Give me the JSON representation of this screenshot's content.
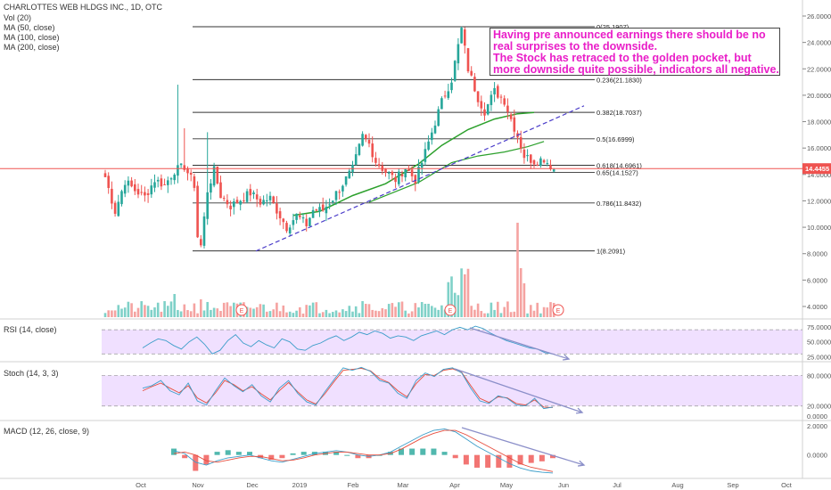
{
  "header": {
    "title": "CHARLOTTES WEB HLDGS INC., 1D, OTC",
    "legend": [
      "Vol (20)",
      "MA (50, close)",
      "MA (100, close)",
      "MA (200, close)"
    ]
  },
  "annotation": {
    "lines": [
      "Having pre announced earnings there should be no",
      "real surprises to the downside.",
      "The Stock has retraced to the golden pocket, but",
      "more downside quite possible, indicators all negative."
    ]
  },
  "price_badge": "14.4455",
  "earnings_marker": "E",
  "panes": {
    "rsi": "RSI (14, close)",
    "stoch": "Stoch (14, 3, 3)",
    "macd": "MACD (12, 26, close, 9)"
  },
  "colors": {
    "up": "#26a69a",
    "down": "#ef5350",
    "ma": "#2ca02c",
    "rsi_line": "#3b9dc9",
    "stoch_k": "#3b9dc9",
    "stoch_d": "#e74c3c",
    "band": "#e6ccff",
    "trend": "#4a3cc9",
    "arrow": "#8b8fc9",
    "annotation_text": "#e91ec8",
    "price_line": "#ef5350"
  },
  "chart_data": [
    {
      "type": "candlestick",
      "title": "CHARLOTTES WEB HLDGS INC., 1D, OTC",
      "x_ticks": [
        "Oct",
        "Nov",
        "Dec",
        "2019",
        "Feb",
        "Mar",
        "Apr",
        "May",
        "Jun",
        "Jul",
        "Aug",
        "Sep",
        "Oct"
      ],
      "y_ticks": [
        "26.0000",
        "24.0000",
        "22.0000",
        "20.0000",
        "18.0000",
        "16.0000",
        "14.0000",
        "12.0000",
        "10.0000",
        "8.0000",
        "6.0000",
        "4.0000"
      ],
      "ylim": [
        3.5,
        26.2
      ],
      "close_path": [
        [
          0,
          13.8
        ],
        [
          3,
          11.2
        ],
        [
          6,
          13.5
        ],
        [
          9,
          12.8
        ],
        [
          12,
          12.3
        ],
        [
          15,
          13.6
        ],
        [
          18,
          13.2
        ],
        [
          21,
          14.3
        ],
        [
          24,
          14.6
        ],
        [
          27,
          13.2
        ],
        [
          28,
          9.3
        ],
        [
          29,
          8.6
        ],
        [
          31,
          12.8
        ],
        [
          33,
          14.3
        ],
        [
          35,
          12.4
        ],
        [
          38,
          11.6
        ],
        [
          41,
          12.1
        ],
        [
          44,
          12.6
        ],
        [
          47,
          11.9
        ],
        [
          50,
          12.2
        ],
        [
          52,
          11.3
        ],
        [
          55,
          10.0
        ],
        [
          58,
          10.9
        ],
        [
          61,
          10.2
        ],
        [
          63,
          11.3
        ],
        [
          66,
          11.3
        ],
        [
          69,
          12.2
        ],
        [
          72,
          13.3
        ],
        [
          75,
          14.4
        ],
        [
          78,
          16.9
        ],
        [
          80,
          16.3
        ],
        [
          82,
          15.0
        ],
        [
          85,
          14.2
        ],
        [
          88,
          13.6
        ],
        [
          91,
          14.5
        ],
        [
          94,
          13.6
        ],
        [
          96,
          14.9
        ],
        [
          99,
          17.2
        ],
        [
          102,
          19.5
        ],
        [
          105,
          21.2
        ],
        [
          108,
          25.0
        ],
        [
          110,
          22.0
        ],
        [
          113,
          19.8
        ],
        [
          115,
          18.8
        ],
        [
          118,
          20.3
        ],
        [
          121,
          19.6
        ],
        [
          123,
          18.2
        ],
        [
          125,
          16.9
        ],
        [
          127,
          15.4
        ],
        [
          130,
          15.0
        ],
        [
          133,
          15.2
        ],
        [
          136,
          14.4
        ]
      ],
      "ma_fast": [
        [
          57,
          10.9
        ],
        [
          65,
          11.2
        ],
        [
          75,
          12.4
        ],
        [
          85,
          13.3
        ],
        [
          95,
          14.8
        ],
        [
          102,
          16.2
        ],
        [
          110,
          17.4
        ],
        [
          118,
          18.2
        ],
        [
          125,
          18.6
        ],
        [
          130,
          18.7
        ]
      ],
      "ma_slow": [
        [
          80,
          11.9
        ],
        [
          95,
          13.4
        ],
        [
          105,
          14.9
        ],
        [
          113,
          15.4
        ],
        [
          121,
          15.7
        ],
        [
          128,
          16.1
        ],
        [
          133,
          16.5
        ]
      ],
      "fib_levels": [
        {
          "label": "0(25.1907)",
          "value": 25.1907
        },
        {
          "label": "0.236(21.1830)",
          "value": 21.183
        },
        {
          "label": "0.382(18.7037)",
          "value": 18.7037
        },
        {
          "label": "0.5(16.6999)",
          "value": 16.6999
        },
        {
          "label": "0.618(14.6961)",
          "value": 14.6961
        },
        {
          "label": "0.65(14.1527)",
          "value": 14.1527
        },
        {
          "label": "0.786(11.8432)",
          "value": 11.8432
        },
        {
          "label": "1(8.2091)",
          "value": 8.2091
        }
      ],
      "last_price": 14.4455
    },
    {
      "type": "line",
      "title": "RSI (14, close)",
      "y_ticks": [
        "75.0000",
        "50.0000",
        "25.0000"
      ],
      "ylim": [
        20,
        85
      ],
      "band": [
        30,
        70
      ],
      "values": [
        40,
        48,
        55,
        52,
        44,
        38,
        50,
        58,
        46,
        30,
        36,
        52,
        62,
        48,
        42,
        52,
        45,
        40,
        55,
        50,
        38,
        36,
        44,
        48,
        55,
        60,
        52,
        58,
        66,
        62,
        68,
        64,
        56,
        60,
        58,
        52,
        60,
        64,
        68,
        62,
        70,
        74,
        70,
        76,
        72,
        64,
        58,
        52,
        48,
        44,
        40,
        38,
        32,
        30
      ]
    },
    {
      "type": "line",
      "title": "Stoch (14, 3, 3)",
      "y_ticks": [
        "80.0000",
        "20.0000",
        "0.0000"
      ],
      "ylim": [
        -5,
        100
      ],
      "band": [
        20,
        80
      ],
      "series": [
        {
          "values": [
            55,
            60,
            70,
            50,
            42,
            65,
            30,
            22,
            50,
            75,
            60,
            48,
            62,
            40,
            28,
            55,
            70,
            45,
            28,
            22,
            48,
            72,
            95,
            90,
            96,
            88,
            70,
            65,
            45,
            35,
            70,
            85,
            78,
            92,
            95,
            85,
            55,
            30,
            25,
            40,
            35,
            22,
            20,
            35,
            15,
            18
          ]
        },
        {
          "values": [
            50,
            58,
            65,
            55,
            46,
            60,
            36,
            26,
            46,
            70,
            62,
            50,
            58,
            44,
            32,
            50,
            66,
            48,
            32,
            24,
            44,
            68,
            90,
            92,
            94,
            89,
            74,
            66,
            50,
            38,
            64,
            82,
            80,
            90,
            93,
            86,
            60,
            35,
            27,
            38,
            36,
            25,
            22,
            32,
            18,
            17
          ]
        }
      ]
    },
    {
      "type": "line",
      "title": "MACD (12, 26, close, 9)",
      "y_ticks": [
        "2.0000",
        "0.0000"
      ],
      "ylim": [
        -1.5,
        2.2
      ],
      "series": [
        {
          "values": [
            0.3,
            0.1,
            -0.5,
            -0.7,
            -0.4,
            -0.2,
            -0.1,
            0.0,
            -0.2,
            -0.4,
            -0.5,
            -0.3,
            -0.1,
            0.1,
            0.2,
            0.3,
            0.2,
            0.0,
            -0.1,
            0.0,
            0.2,
            0.6,
            1.0,
            1.4,
            1.7,
            1.8,
            1.6,
            1.1,
            0.6,
            0.2,
            -0.2,
            -0.6,
            -0.9,
            -1.1,
            -1.2,
            -1.25
          ]
        },
        {
          "values": [
            0.1,
            0.2,
            0.0,
            -0.4,
            -0.5,
            -0.35,
            -0.2,
            -0.1,
            -0.1,
            -0.25,
            -0.4,
            -0.35,
            -0.2,
            0.0,
            0.1,
            0.2,
            0.2,
            0.1,
            0.0,
            0.0,
            0.1,
            0.4,
            0.8,
            1.2,
            1.5,
            1.7,
            1.7,
            1.4,
            1.0,
            0.6,
            0.2,
            -0.2,
            -0.6,
            -0.85,
            -1.0,
            -1.15
          ]
        }
      ]
    }
  ]
}
